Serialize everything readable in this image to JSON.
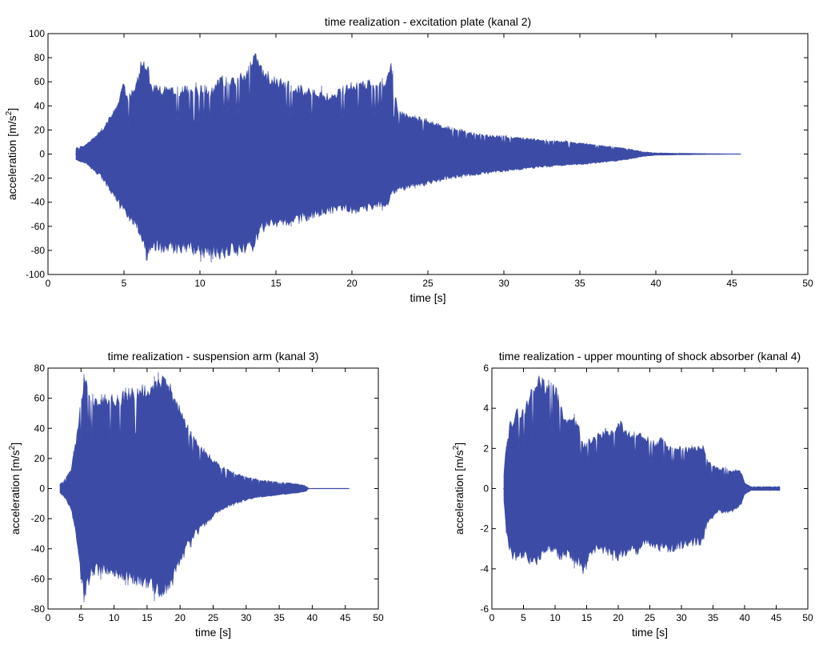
{
  "colors": {
    "signal": "#3c4ca6",
    "axes": "#000000",
    "background": "#ffffff"
  },
  "chart_data": [
    {
      "type": "line",
      "title": "time realization - excitation plate (kanal 2)",
      "xlabel": "time [s]",
      "ylabel": "acceleration [m/s2]",
      "ylabel_parts": {
        "base": "acceleration [m/s",
        "sup": "2",
        "end": "]"
      },
      "xlim": [
        0,
        50
      ],
      "ylim": [
        -100,
        100
      ],
      "xticks": [
        "0",
        "5",
        "10",
        "15",
        "20",
        "25",
        "30",
        "35",
        "40",
        "45",
        "50"
      ],
      "yticks": [
        "100",
        "80",
        "60",
        "40",
        "20",
        "0",
        "-20",
        "-40",
        "-60",
        "-80",
        "-100"
      ],
      "grid": false,
      "signal_extent": [
        1.8,
        45.6
      ],
      "envelope": {
        "t": [
          1.8,
          2.5,
          3.5,
          4.5,
          4.9,
          5.3,
          5.8,
          6.1,
          6.5,
          6.8,
          7.3,
          9.0,
          10.0,
          10.9,
          11.3,
          12.0,
          13.0,
          13.6,
          14.0,
          14.8,
          15.5,
          16.5,
          17.5,
          18.5,
          19.5,
          20.5,
          21.5,
          22.3,
          22.6,
          23.0,
          24.0,
          25.0,
          26.0,
          28.0,
          30.0,
          32.0,
          34.0,
          36.0,
          38.0,
          39.2,
          40.0,
          45.6
        ],
        "upper": [
          5,
          8,
          20,
          40,
          64,
          50,
          60,
          78,
          80,
          60,
          57,
          57,
          57,
          56,
          66,
          64,
          70,
          86,
          75,
          65,
          62,
          58,
          54,
          52,
          58,
          62,
          62,
          66,
          78,
          38,
          32,
          30,
          24,
          18,
          15,
          13,
          11,
          8,
          5,
          2,
          1,
          0
        ],
        "lower": [
          -5,
          -8,
          -20,
          -40,
          -50,
          -56,
          -60,
          -75,
          -90,
          -86,
          -82,
          -84,
          -86,
          -88,
          -90,
          -86,
          -86,
          -80,
          -66,
          -62,
          -60,
          -58,
          -54,
          -50,
          -50,
          -50,
          -46,
          -45,
          -36,
          -32,
          -28,
          -26,
          -22,
          -18,
          -15,
          -12,
          -10,
          -8,
          -5,
          -2,
          -1,
          0
        ]
      }
    },
    {
      "type": "line",
      "title": "time realization - suspension arm (kanal 3)",
      "xlabel": "time [s]",
      "ylabel": "acceleration [m/s2]",
      "ylabel_parts": {
        "base": "acceleration [m/s",
        "sup": "2",
        "end": "]"
      },
      "xlim": [
        0,
        50
      ],
      "ylim": [
        -80,
        80
      ],
      "xticks": [
        "0",
        "5",
        "10",
        "15",
        "20",
        "25",
        "30",
        "35",
        "40",
        "45",
        "50"
      ],
      "yticks": [
        "80",
        "60",
        "40",
        "20",
        "0",
        "-20",
        "-40",
        "-60",
        "-80"
      ],
      "grid": false,
      "signal_extent": [
        1.8,
        45.6
      ],
      "envelope": {
        "t": [
          1.8,
          2.5,
          3.5,
          4.5,
          5.0,
          5.5,
          6.5,
          8.0,
          10.0,
          12.0,
          14.0,
          16.0,
          17.0,
          18.0,
          19.0,
          20.0,
          21.0,
          22.0,
          24.0,
          26.0,
          28.0,
          30.0,
          32.0,
          34.0,
          36.0,
          38.0,
          39.0,
          39.5,
          45.6
        ],
        "upper": [
          3,
          6,
          14,
          40,
          62,
          78,
          65,
          63,
          63,
          67,
          70,
          74,
          77,
          74,
          66,
          55,
          45,
          36,
          25,
          16,
          11,
          8,
          6,
          5,
          4,
          3,
          2,
          0,
          0
        ],
        "lower": [
          -3,
          -6,
          -14,
          -40,
          -62,
          -76,
          -60,
          -58,
          -60,
          -62,
          -66,
          -70,
          -75,
          -71,
          -64,
          -52,
          -42,
          -34,
          -24,
          -16,
          -11,
          -8,
          -6,
          -5,
          -4,
          -3,
          -2,
          0,
          0
        ]
      }
    },
    {
      "type": "line",
      "title": "time realization - upper mounting of shock absorber (kanal 4)",
      "xlabel": "time [s]",
      "ylabel": "acceleration [m/s2]",
      "ylabel_parts": {
        "base": "acceleration [m/s",
        "sup": "2",
        "end": "]"
      },
      "xlim": [
        0,
        50
      ],
      "ylim": [
        -6,
        6
      ],
      "xticks": [
        "0",
        "5",
        "10",
        "15",
        "20",
        "25",
        "30",
        "35",
        "40",
        "45",
        "50"
      ],
      "yticks": [
        "6",
        "4",
        "2",
        "0",
        "-2",
        "-4",
        "-6"
      ],
      "grid": false,
      "signal_extent": [
        1.8,
        45.6
      ],
      "envelope": {
        "t": [
          1.8,
          2.2,
          3.0,
          4.0,
          5.0,
          6.0,
          6.5,
          7.0,
          8.0,
          9.0,
          10.0,
          11.0,
          12.0,
          13.0,
          14.0,
          14.5,
          15.5,
          16.5,
          18.0,
          19.0,
          20.0,
          21.0,
          22.0,
          23.0,
          24.0,
          25.0,
          26.0,
          27.0,
          28.0,
          30.0,
          32.0,
          33.5,
          34.0,
          35.0,
          36.0,
          37.0,
          38.0,
          39.0,
          39.5,
          40.0,
          41.0,
          45.6
        ],
        "upper": [
          0.2,
          2.2,
          3.5,
          4.0,
          4.2,
          5.0,
          5.2,
          6.0,
          5.6,
          5.5,
          5.4,
          4.2,
          3.5,
          3.6,
          3.0,
          2.2,
          2.6,
          2.8,
          3.0,
          2.9,
          3.5,
          3.2,
          2.8,
          3.0,
          2.8,
          2.5,
          2.4,
          2.6,
          2.2,
          2.1,
          2.1,
          2.2,
          1.5,
          1.2,
          1.0,
          1.1,
          0.9,
          1.0,
          0.8,
          0.3,
          0.1,
          0.1
        ],
        "lower": [
          -0.2,
          -2.0,
          -3.5,
          -3.8,
          -3.5,
          -3.8,
          -3.9,
          -4.0,
          -3.6,
          -3.2,
          -3.4,
          -3.6,
          -3.4,
          -3.8,
          -4.0,
          -4.4,
          -3.6,
          -3.2,
          -3.4,
          -3.4,
          -3.6,
          -3.5,
          -3.2,
          -3.4,
          -3.0,
          -2.9,
          -3.2,
          -3.0,
          -3.3,
          -3.0,
          -2.9,
          -2.8,
          -1.8,
          -1.5,
          -1.2,
          -1.3,
          -1.2,
          -1.0,
          -0.8,
          -0.3,
          -0.1,
          -0.1
        ]
      }
    }
  ]
}
